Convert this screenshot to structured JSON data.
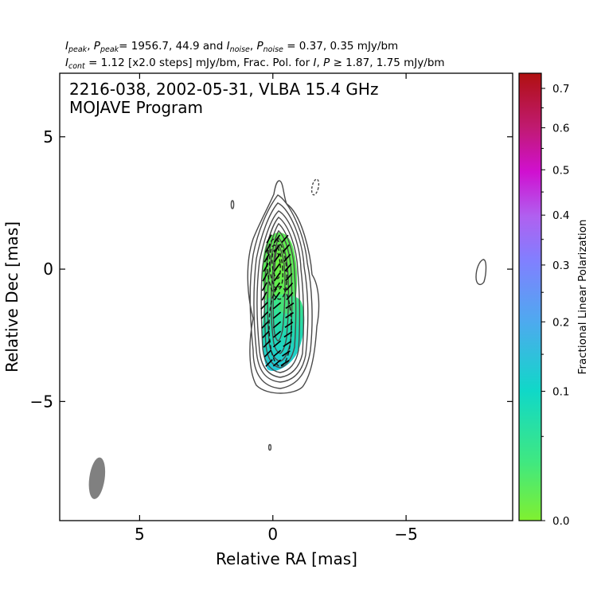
{
  "header": {
    "line1": "I_peak, P_peak = 1956.7, 44.9 and I_noise, P_noise = 0.37, 0.35 mJy/bm",
    "line1_values": "= 1956.7, 44.9 and",
    "line1_noise_values": "= 0.37, 0.35 mJy/bm",
    "line2": "I_cont = 1.12 [x2.0 steps] mJy/bm, Frac. Pol. for I, P ≥ 1.87, 1.75 mJy/bm",
    "line2_a": "= 1.12 [x2.0 steps] mJy/bm, Frac. Pol. for",
    "line2_b": "≥ 1.87, 1.75 mJy/bm"
  },
  "chart_data": {
    "type": "contour",
    "title": "2216-038, 2002-05-31, VLBA 15.4 GHz",
    "subtitle": "MOJAVE Program",
    "xlabel": "Relative RA [mas]",
    "ylabel": "Relative Dec [mas]",
    "xlim": [
      8.0,
      -9.0
    ],
    "ylim": [
      -9.5,
      7.4
    ],
    "xticks": [
      5,
      0,
      -5
    ],
    "xtick_labels": [
      "5",
      "0",
      "−5"
    ],
    "yticks": [
      5,
      0,
      -5
    ],
    "ytick_labels": [
      "5",
      "0",
      "−5"
    ],
    "contour_base_mJy_per_beam": 1.12,
    "contour_step": 2.0,
    "stokes_I_peak_mJy_per_beam": 1956.7,
    "polarized_peak_mJy_per_beam": 44.9,
    "stokes_I_noise_mJy_per_beam": 0.37,
    "polarized_noise_mJy_per_beam": 0.35,
    "beam": {
      "ra": 6.6,
      "dec": -7.9,
      "major_mas": 1.5,
      "minor_mas": 0.55,
      "pa_deg": -8
    },
    "colorbar": {
      "label": "Fractional Linear Polarization",
      "ticks": [
        0.0,
        0.1,
        0.2,
        0.3,
        0.4,
        0.5,
        0.6,
        0.7
      ],
      "tick_labels": [
        "0.0",
        "0.1",
        "0.2",
        "0.3",
        "0.4",
        "0.5",
        "0.6",
        "0.7"
      ],
      "colors": [
        "#80f030",
        "#40e880",
        "#10d8c8",
        "#40b0e8",
        "#7090ff",
        "#a060ff",
        "#d010d0",
        "#c02080",
        "#b01010"
      ]
    },
    "polarization_patches": [
      {
        "ra": -0.1,
        "dec": -0.3,
        "fracpol": 0.03
      },
      {
        "ra": -0.3,
        "dec": -2.6,
        "fracpol": 0.12
      }
    ]
  }
}
